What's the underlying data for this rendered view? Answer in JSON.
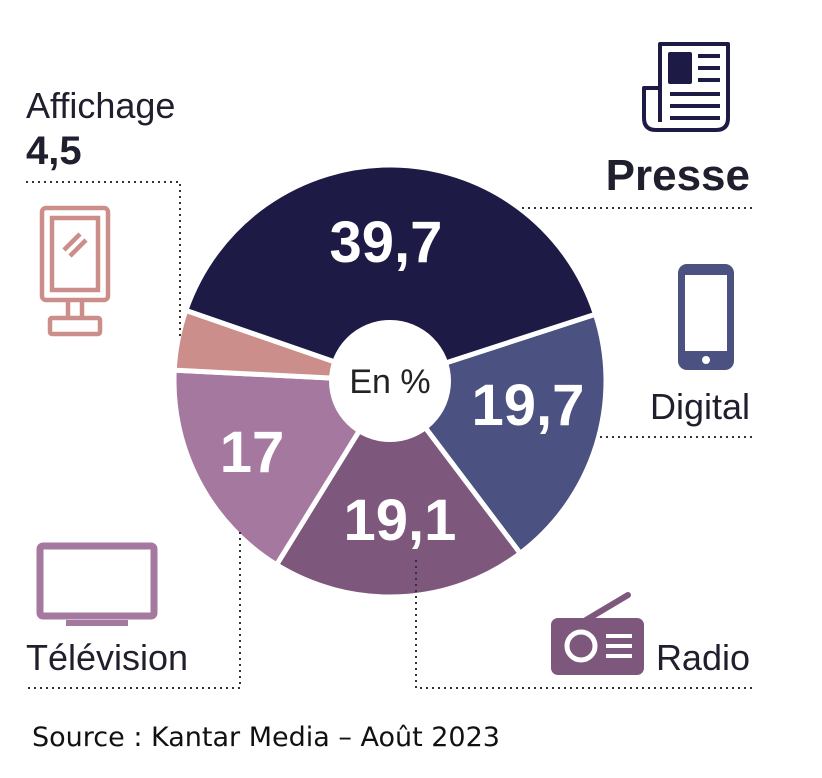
{
  "chart_data": {
    "type": "pie",
    "title": "",
    "center_label": "En %",
    "categories": [
      "Presse",
      "Digital",
      "Radio",
      "Télévision",
      "Affichage"
    ],
    "values": [
      39.7,
      19.7,
      19.1,
      17,
      4.5
    ],
    "value_labels": [
      "39,7",
      "19,7",
      "19,1",
      "17",
      "4,5"
    ],
    "colors": [
      "#1d1b45",
      "#4b5180",
      "#7e577d",
      "#a5799f",
      "#cc8e8a"
    ]
  },
  "source": "Source : Kantar Media – Août 2023",
  "icons": {
    "presse": "newspaper-icon",
    "digital": "smartphone-icon",
    "radio": "radio-icon",
    "television": "television-icon",
    "affichage": "billboard-icon"
  }
}
